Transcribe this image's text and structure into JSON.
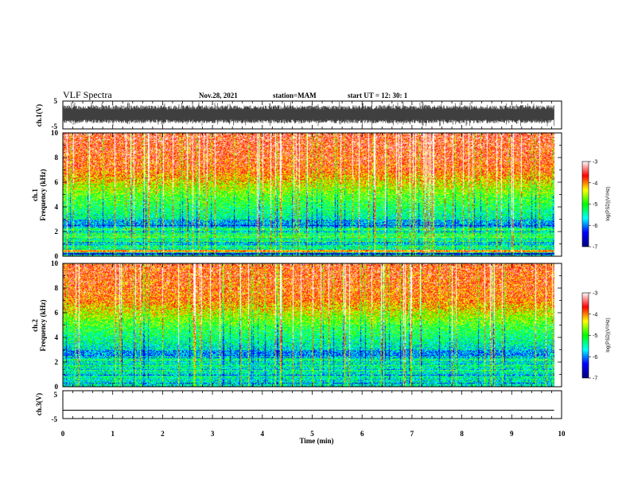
{
  "header": {
    "title": "VLF Spectra",
    "date": "Nov.28, 2021",
    "station": "station=MAM",
    "start": "start  UT =   12: 30: 1"
  },
  "chart_data": [
    {
      "type": "line",
      "panel": "ch1-waveform",
      "ylabel": "ch.1(V)",
      "ylim": [
        -5,
        5
      ],
      "yticks": [
        "5",
        "-5"
      ],
      "xlim": [
        0,
        10
      ],
      "description_values": {
        "band_upper": 3.5,
        "band_lower": -3.0
      }
    },
    {
      "type": "heatmap",
      "panel": "ch1-spectrogram",
      "ylabel_line1": "ch.1",
      "ylabel_line2": "Frequency (kHz)",
      "ylim": [
        0,
        10
      ],
      "yticks": [
        "0",
        "2",
        "4",
        "6",
        "8",
        "10"
      ],
      "xlim": [
        0,
        10.0
      ],
      "data_end": 9.85
    },
    {
      "type": "heatmap",
      "panel": "ch2-spectrogram",
      "ylabel_line1": "ch.2",
      "ylabel_line2": "Frequency (kHz)",
      "ylim": [
        0,
        10
      ],
      "yticks": [
        "0",
        "2",
        "4",
        "6",
        "8",
        "10"
      ],
      "xlim": [
        0,
        10.0
      ],
      "data_end": 9.85
    },
    {
      "type": "line",
      "panel": "ch3-waveform",
      "ylabel": "ch.3(V)",
      "ylim": [
        -5,
        5
      ],
      "yticks": [
        "5",
        "-5"
      ],
      "xlim": [
        0,
        10
      ],
      "constant_value": -2.0
    }
  ],
  "xaxis": {
    "label": "Time (min)",
    "ticks": [
      "0",
      "1",
      "2",
      "3",
      "4",
      "5",
      "6",
      "7",
      "8",
      "9",
      "10"
    ]
  },
  "colorbar": {
    "label": "log(PSD)(V²/Hz)",
    "ticks": [
      "-3",
      "-4",
      "-5",
      "-6",
      "-7"
    ],
    "range": [
      -7,
      -3
    ],
    "colors": [
      "#000080",
      "#0000ff",
      "#00ffff",
      "#00ff00",
      "#ffff00",
      "#ff0000",
      "#ffffff"
    ]
  }
}
